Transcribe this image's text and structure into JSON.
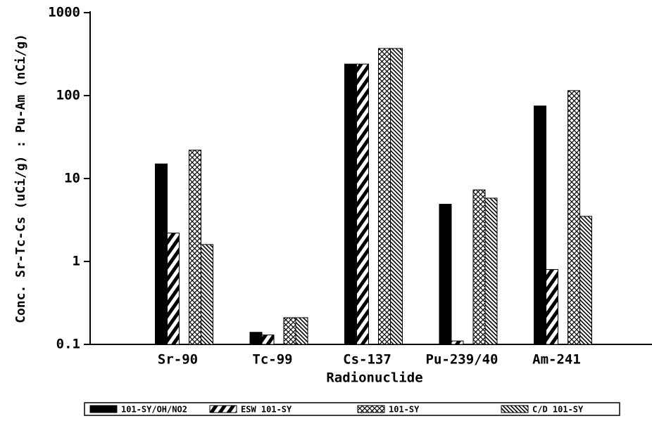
{
  "chart_data": {
    "type": "bar",
    "y_label": "Conc. Sr-Tc-Cs (uCi/g) : Pu-Am (nCi/g)",
    "x_label": "Radionuclide",
    "categories": [
      "Sr-90",
      "Tc-99",
      "Cs-137",
      "Pu-239/40",
      "Am-241"
    ],
    "series": [
      {
        "name": "101-SY/OH/NO2",
        "color": "#000000",
        "pattern": "solid",
        "values": [
          15,
          0.14,
          240,
          4.9,
          75
        ]
      },
      {
        "name": "ESW 101-SY",
        "color": "#000000",
        "pattern": "hatch",
        "values": [
          2.2,
          0.13,
          240,
          0.11,
          0.8
        ]
      },
      {
        "name": "101-SY",
        "color": "#000000",
        "pattern": "cross",
        "values": [
          22,
          0.21,
          370,
          7.3,
          115
        ]
      },
      {
        "name": "C/D 101-SY",
        "color": "#000000",
        "pattern": "dense",
        "values": [
          1.6,
          0.21,
          370,
          5.8,
          3.5
        ]
      }
    ],
    "log_y": true,
    "ylim": [
      0.1,
      1000
    ],
    "yticks": [
      0.1,
      1,
      10,
      100,
      1000
    ],
    "legend": "bottom"
  }
}
